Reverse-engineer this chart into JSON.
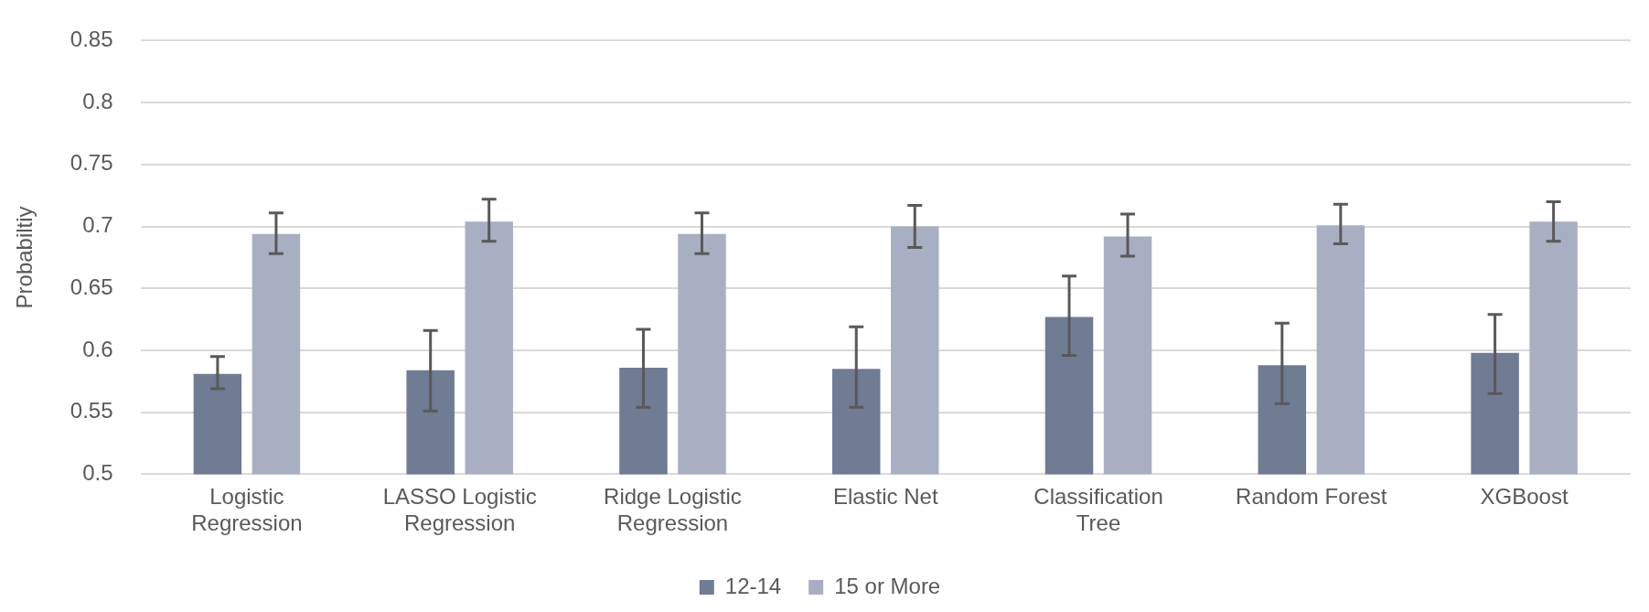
{
  "chart_data": {
    "type": "bar",
    "ylabel": "Probabiltiy",
    "categories": [
      "Logistic Regression",
      "LASSO Logistic Regression",
      "Ridge Logistic Regression",
      "Elastic Net",
      "Classification Tree",
      "Random Forest",
      "XGBoost"
    ],
    "series": [
      {
        "name": "12-14",
        "color": "#707b94",
        "values": [
          0.581,
          0.584,
          0.586,
          0.585,
          0.627,
          0.588,
          0.598
        ],
        "errors": [
          [
            0.569,
            0.595
          ],
          [
            0.551,
            0.616
          ],
          [
            0.554,
            0.617
          ],
          [
            0.554,
            0.619
          ],
          [
            0.596,
            0.66
          ],
          [
            0.557,
            0.622
          ],
          [
            0.565,
            0.629
          ]
        ]
      },
      {
        "name": "15 or More",
        "color": "#a9afc2",
        "values": [
          0.694,
          0.704,
          0.694,
          0.7,
          0.692,
          0.701,
          0.704
        ],
        "errors": [
          [
            0.678,
            0.711
          ],
          [
            0.688,
            0.722
          ],
          [
            0.678,
            0.711
          ],
          [
            0.683,
            0.717
          ],
          [
            0.676,
            0.71
          ],
          [
            0.686,
            0.718
          ],
          [
            0.688,
            0.72
          ]
        ]
      }
    ],
    "ylim": [
      0.5,
      0.85
    ],
    "yticks": [
      0.5,
      0.55,
      0.6,
      0.65,
      0.7,
      0.75,
      0.8,
      0.85
    ],
    "grid": "y",
    "legend": "bottom"
  }
}
